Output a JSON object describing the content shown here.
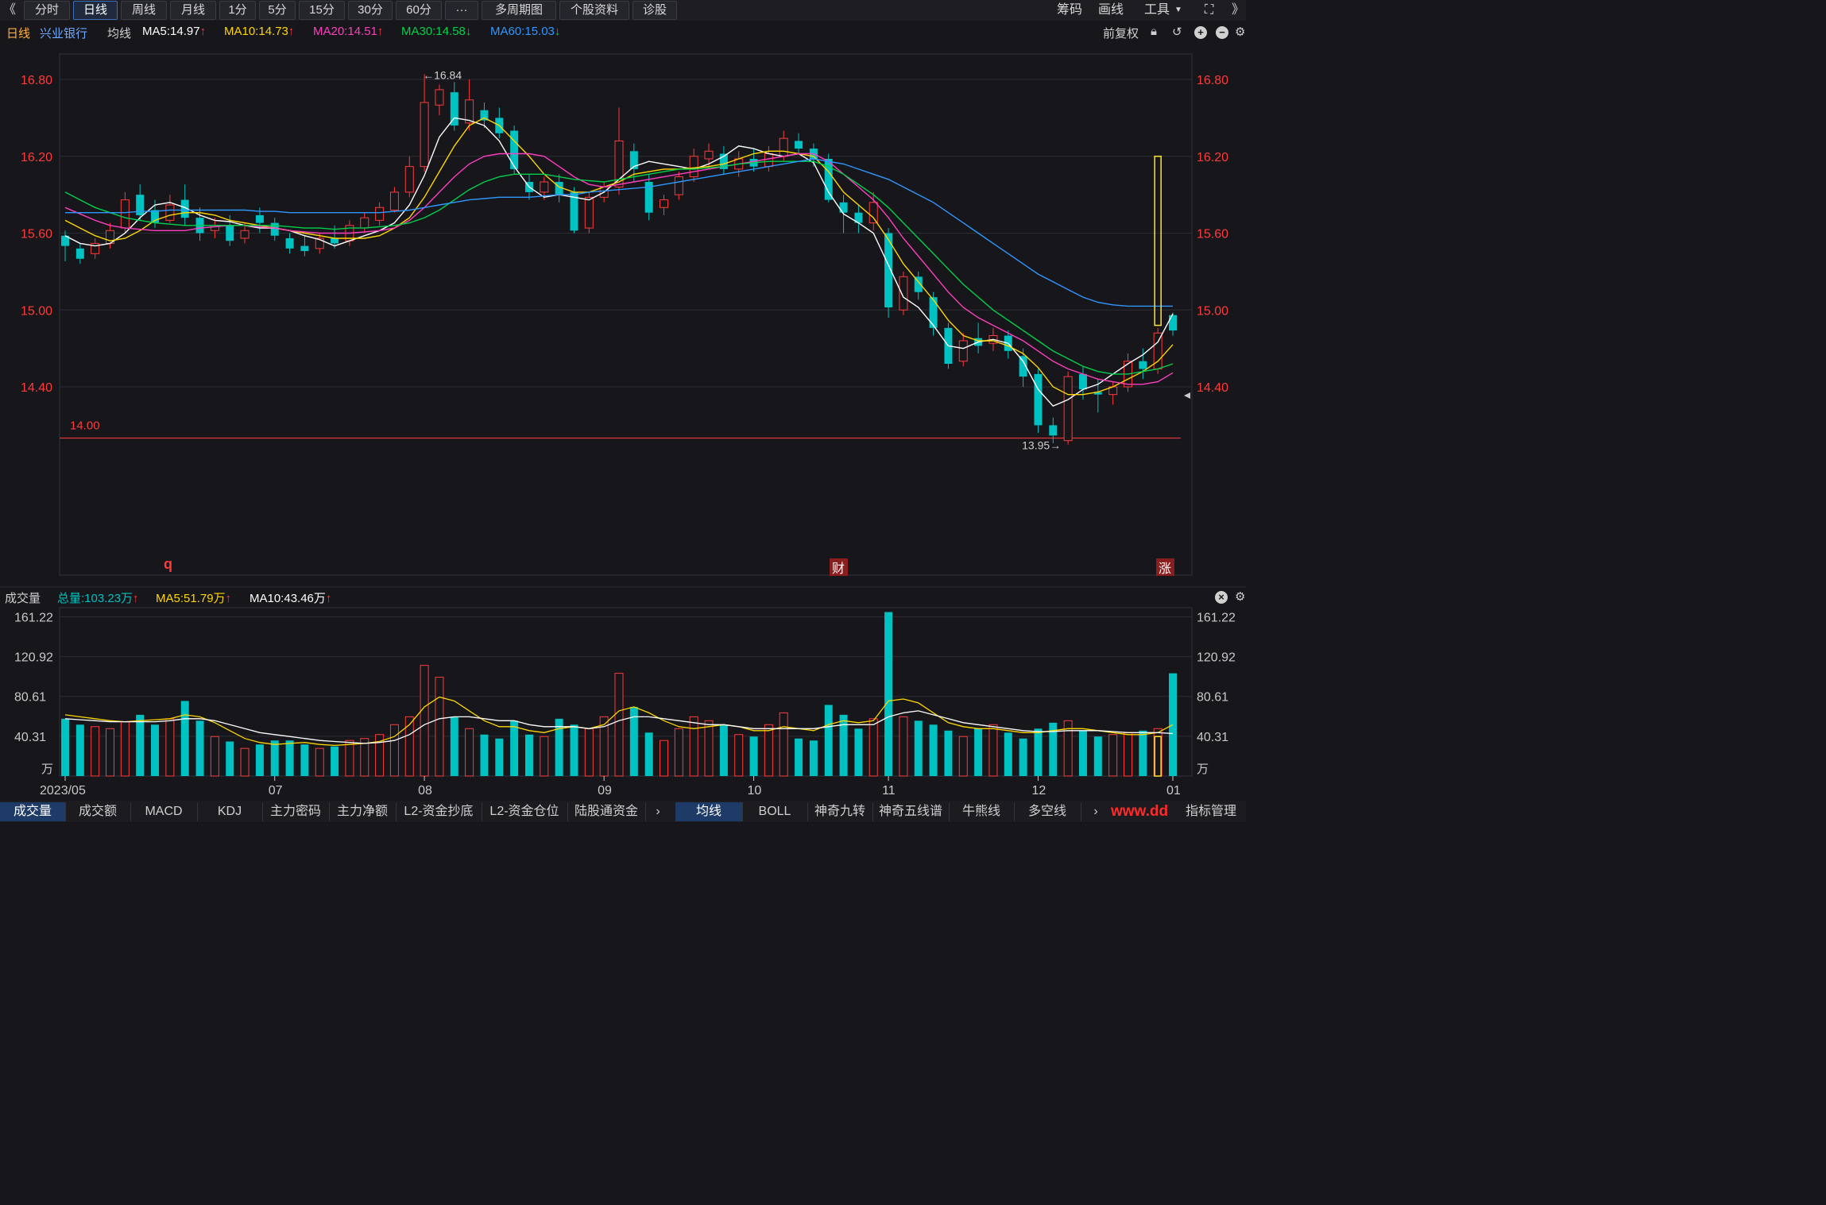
{
  "toolbar": {
    "back": "《",
    "tabs": [
      "分时",
      "日线",
      "周线",
      "月线",
      "1分",
      "5分",
      "15分",
      "30分",
      "60分",
      "···",
      "多周期图",
      "个股资料",
      "诊股"
    ],
    "active_tab": "日线",
    "right": [
      "筹码",
      "画线",
      "工具"
    ],
    "more": "》"
  },
  "info": {
    "period": "日线",
    "stock_name": "兴业银行",
    "ma_label": "均线",
    "ma5": "MA5:14.97",
    "ma10": "MA10:14.73",
    "ma20": "MA20:14.51",
    "ma30": "MA30:14.58",
    "ma60": "MA60:15.03",
    "adjust": "前复权"
  },
  "colors": {
    "up": "#ff3b3b",
    "down": "#00c2c2",
    "ma5": "#ffffff",
    "ma10": "#ffd700",
    "ma20": "#ff3fbf",
    "ma30": "#00d14b",
    "ma60": "#2f97ff",
    "axis_text": "#ff3b3b"
  },
  "chart_data": {
    "type": "candlestick",
    "price_ticks": [
      14.4,
      15.0,
      15.6,
      16.2,
      16.8
    ],
    "price_tick_labels": [
      "14.40",
      "15.00",
      "15.60",
      "16.20",
      "16.80"
    ],
    "ylim": [
      13.85,
      16.95
    ],
    "high_label": "←16.84",
    "low_label": "13.95→",
    "support_line": 14.0,
    "support_label": "14.00",
    "markers": [
      "q",
      "财",
      "涨"
    ],
    "x_labels": [
      "2023/05",
      "07",
      "08",
      "09",
      "10",
      "11",
      "12",
      "01"
    ],
    "ma_series": [
      {
        "name": "MA5",
        "values": [
          15.58,
          15.52,
          15.5,
          15.52,
          15.6,
          15.72,
          15.82,
          15.84,
          15.8,
          15.74,
          15.7,
          15.69,
          15.66,
          15.64,
          15.64,
          15.62,
          15.58,
          15.55,
          15.5,
          15.54,
          15.58,
          15.62,
          15.68,
          15.82,
          16.05,
          16.35,
          16.5,
          16.48,
          16.44,
          16.32,
          16.12,
          15.96,
          15.88,
          15.9,
          15.88,
          15.86,
          15.92,
          16.02,
          16.12,
          16.16,
          16.14,
          16.12,
          16.1,
          16.14,
          16.2,
          16.28,
          16.26,
          16.22,
          16.2,
          16.22,
          16.15,
          15.92,
          15.75,
          15.68,
          15.6,
          15.35,
          15.1,
          15.02,
          14.88,
          14.72,
          14.7,
          14.75,
          14.77,
          14.74,
          14.6,
          14.38,
          14.25,
          14.3,
          14.38,
          14.42,
          14.5,
          14.58,
          14.65,
          14.75,
          14.97
        ]
      },
      {
        "name": "MA10",
        "values": [
          15.7,
          15.64,
          15.58,
          15.54,
          15.56,
          15.62,
          15.7,
          15.74,
          15.76,
          15.76,
          15.74,
          15.7,
          15.68,
          15.66,
          15.64,
          15.62,
          15.6,
          15.58,
          15.56,
          15.56,
          15.56,
          15.58,
          15.64,
          15.72,
          15.88,
          16.08,
          16.28,
          16.44,
          16.5,
          16.44,
          16.32,
          16.2,
          16.06,
          15.96,
          15.92,
          15.92,
          15.96,
          16.0,
          16.06,
          16.08,
          16.1,
          16.1,
          16.11,
          16.12,
          16.14,
          16.18,
          16.22,
          16.24,
          16.24,
          16.22,
          16.2,
          16.08,
          15.92,
          15.82,
          15.72,
          15.55,
          15.36,
          15.22,
          15.08,
          14.92,
          14.8,
          14.76,
          14.76,
          14.72,
          14.66,
          14.55,
          14.4,
          14.34,
          14.34,
          14.36,
          14.4,
          14.46,
          14.52,
          14.6,
          14.73
        ]
      },
      {
        "name": "MA20",
        "values": [
          15.8,
          15.75,
          15.7,
          15.66,
          15.64,
          15.63,
          15.62,
          15.62,
          15.62,
          15.64,
          15.65,
          15.66,
          15.66,
          15.65,
          15.64,
          15.62,
          15.61,
          15.6,
          15.6,
          15.6,
          15.61,
          15.62,
          15.64,
          15.7,
          15.8,
          15.92,
          16.04,
          16.14,
          16.2,
          16.22,
          16.22,
          16.22,
          16.2,
          16.12,
          16.04,
          15.98,
          15.96,
          15.98,
          16.0,
          16.02,
          16.04,
          16.06,
          16.08,
          16.1,
          16.12,
          16.14,
          16.16,
          16.18,
          16.2,
          16.22,
          16.22,
          16.16,
          16.06,
          15.96,
          15.86,
          15.72,
          15.56,
          15.42,
          15.28,
          15.14,
          15.02,
          14.94,
          14.88,
          14.82,
          14.76,
          14.68,
          14.6,
          14.54,
          14.5,
          14.46,
          14.44,
          14.42,
          14.42,
          14.44,
          14.51
        ]
      },
      {
        "name": "MA30",
        "values": [
          15.92,
          15.86,
          15.8,
          15.76,
          15.72,
          15.7,
          15.68,
          15.67,
          15.66,
          15.66,
          15.66,
          15.66,
          15.66,
          15.66,
          15.66,
          15.65,
          15.64,
          15.64,
          15.63,
          15.64,
          15.64,
          15.65,
          15.66,
          15.68,
          15.72,
          15.78,
          15.86,
          15.94,
          16.0,
          16.04,
          16.06,
          16.06,
          16.06,
          16.04,
          16.02,
          16.01,
          16.0,
          16.02,
          16.04,
          16.06,
          16.08,
          16.1,
          16.1,
          16.11,
          16.12,
          16.14,
          16.15,
          16.16,
          16.16,
          16.16,
          16.16,
          16.12,
          16.06,
          15.98,
          15.9,
          15.8,
          15.68,
          15.56,
          15.44,
          15.32,
          15.2,
          15.1,
          15.0,
          14.92,
          14.84,
          14.76,
          14.68,
          14.62,
          14.56,
          14.52,
          14.5,
          14.5,
          14.52,
          14.54,
          14.58
        ]
      },
      {
        "name": "MA60",
        "values": [
          15.76,
          15.76,
          15.76,
          15.76,
          15.76,
          15.77,
          15.77,
          15.78,
          15.78,
          15.78,
          15.78,
          15.78,
          15.78,
          15.77,
          15.77,
          15.76,
          15.76,
          15.76,
          15.76,
          15.76,
          15.76,
          15.76,
          15.77,
          15.78,
          15.8,
          15.82,
          15.84,
          15.86,
          15.87,
          15.88,
          15.88,
          15.88,
          15.89,
          15.9,
          15.9,
          15.92,
          15.93,
          15.94,
          15.95,
          15.96,
          15.98,
          16.0,
          16.02,
          16.04,
          16.06,
          16.08,
          16.1,
          16.12,
          16.14,
          16.16,
          16.18,
          16.16,
          16.14,
          16.1,
          16.06,
          16.02,
          15.96,
          15.9,
          15.84,
          15.76,
          15.68,
          15.6,
          15.52,
          15.44,
          15.36,
          15.28,
          15.22,
          15.16,
          15.1,
          15.06,
          15.04,
          15.03,
          15.03,
          15.03,
          15.03
        ]
      }
    ],
    "candles": [
      {
        "o": 15.58,
        "h": 15.62,
        "c": 15.5,
        "l": 15.38
      },
      {
        "o": 15.48,
        "h": 15.52,
        "c": 15.4,
        "l": 15.36
      },
      {
        "o": 15.44,
        "h": 15.56,
        "c": 15.52,
        "l": 15.4
      },
      {
        "o": 15.52,
        "h": 15.68,
        "c": 15.62,
        "l": 15.48
      },
      {
        "o": 15.64,
        "h": 15.92,
        "c": 15.86,
        "l": 15.6
      },
      {
        "o": 15.9,
        "h": 15.98,
        "c": 15.74,
        "l": 15.7
      },
      {
        "o": 15.78,
        "h": 15.86,
        "c": 15.68,
        "l": 15.64
      },
      {
        "o": 15.7,
        "h": 15.9,
        "c": 15.82,
        "l": 15.68
      },
      {
        "o": 15.86,
        "h": 15.98,
        "c": 15.72,
        "l": 15.66
      },
      {
        "o": 15.72,
        "h": 15.8,
        "c": 15.6,
        "l": 15.54
      },
      {
        "o": 15.62,
        "h": 15.72,
        "c": 15.66,
        "l": 15.56
      },
      {
        "o": 15.66,
        "h": 15.74,
        "c": 15.54,
        "l": 15.5
      },
      {
        "o": 15.56,
        "h": 15.68,
        "c": 15.62,
        "l": 15.52
      },
      {
        "o": 15.74,
        "h": 15.8,
        "c": 15.68,
        "l": 15.6
      },
      {
        "o": 15.68,
        "h": 15.72,
        "c": 15.58,
        "l": 15.54
      },
      {
        "o": 15.56,
        "h": 15.6,
        "c": 15.48,
        "l": 15.44
      },
      {
        "o": 15.5,
        "h": 15.58,
        "c": 15.46,
        "l": 15.42
      },
      {
        "o": 15.48,
        "h": 15.6,
        "c": 15.56,
        "l": 15.44
      },
      {
        "o": 15.56,
        "h": 15.66,
        "c": 15.52,
        "l": 15.48
      },
      {
        "o": 15.54,
        "h": 15.7,
        "c": 15.66,
        "l": 15.5
      },
      {
        "o": 15.64,
        "h": 15.76,
        "c": 15.72,
        "l": 15.6
      },
      {
        "o": 15.7,
        "h": 15.84,
        "c": 15.8,
        "l": 15.66
      },
      {
        "o": 15.78,
        "h": 15.96,
        "c": 15.92,
        "l": 15.76
      },
      {
        "o": 15.92,
        "h": 16.2,
        "c": 16.12,
        "l": 15.88
      },
      {
        "o": 16.12,
        "h": 16.84,
        "c": 16.62,
        "l": 16.08
      },
      {
        "o": 16.6,
        "h": 16.76,
        "c": 16.72,
        "l": 16.52
      },
      {
        "o": 16.7,
        "h": 16.78,
        "c": 16.44,
        "l": 16.4
      },
      {
        "o": 16.46,
        "h": 16.8,
        "c": 16.64,
        "l": 16.4
      },
      {
        "o": 16.56,
        "h": 16.62,
        "c": 16.48,
        "l": 16.42
      },
      {
        "o": 16.5,
        "h": 16.58,
        "c": 16.38,
        "l": 16.34
      },
      {
        "o": 16.4,
        "h": 16.44,
        "c": 16.1,
        "l": 16.06
      },
      {
        "o": 16.0,
        "h": 16.06,
        "c": 15.92,
        "l": 15.86
      },
      {
        "o": 15.92,
        "h": 16.04,
        "c": 16.0,
        "l": 15.86
      },
      {
        "o": 16.0,
        "h": 16.06,
        "c": 15.9,
        "l": 15.84
      },
      {
        "o": 15.92,
        "h": 15.96,
        "c": 15.62,
        "l": 15.6
      },
      {
        "o": 15.64,
        "h": 15.92,
        "c": 15.88,
        "l": 15.6
      },
      {
        "o": 15.88,
        "h": 16.0,
        "c": 15.96,
        "l": 15.84
      },
      {
        "o": 15.96,
        "h": 16.58,
        "c": 16.32,
        "l": 15.9
      },
      {
        "o": 16.24,
        "h": 16.3,
        "c": 16.1,
        "l": 16.0
      },
      {
        "o": 16.0,
        "h": 16.06,
        "c": 15.76,
        "l": 15.7
      },
      {
        "o": 15.8,
        "h": 15.9,
        "c": 15.86,
        "l": 15.74
      },
      {
        "o": 15.9,
        "h": 16.08,
        "c": 16.04,
        "l": 15.86
      },
      {
        "o": 16.04,
        "h": 16.26,
        "c": 16.2,
        "l": 16.0
      },
      {
        "o": 16.18,
        "h": 16.3,
        "c": 16.24,
        "l": 16.1
      },
      {
        "o": 16.22,
        "h": 16.28,
        "c": 16.1,
        "l": 16.06
      },
      {
        "o": 16.1,
        "h": 16.24,
        "c": 16.18,
        "l": 16.04
      },
      {
        "o": 16.18,
        "h": 16.26,
        "c": 16.12,
        "l": 16.08
      },
      {
        "o": 16.12,
        "h": 16.28,
        "c": 16.22,
        "l": 16.08
      },
      {
        "o": 16.2,
        "h": 16.4,
        "c": 16.34,
        "l": 16.16
      },
      {
        "o": 16.32,
        "h": 16.38,
        "c": 16.26,
        "l": 16.22
      },
      {
        "o": 16.26,
        "h": 16.3,
        "c": 16.18,
        "l": 16.12
      },
      {
        "o": 16.18,
        "h": 16.22,
        "c": 15.86,
        "l": 15.84
      },
      {
        "o": 15.84,
        "h": 15.9,
        "c": 15.76,
        "l": 15.6
      },
      {
        "o": 15.76,
        "h": 15.82,
        "c": 15.68,
        "l": 15.6
      },
      {
        "o": 15.68,
        "h": 15.92,
        "c": 15.84,
        "l": 15.62
      },
      {
        "o": 15.6,
        "h": 15.64,
        "c": 15.02,
        "l": 14.94
      },
      {
        "o": 15.0,
        "h": 15.3,
        "c": 15.26,
        "l": 14.96
      },
      {
        "o": 15.26,
        "h": 15.3,
        "c": 15.14,
        "l": 15.08
      },
      {
        "o": 15.1,
        "h": 15.14,
        "c": 14.86,
        "l": 14.8
      },
      {
        "o": 14.86,
        "h": 14.9,
        "c": 14.58,
        "l": 14.54
      },
      {
        "o": 14.6,
        "h": 14.82,
        "c": 14.76,
        "l": 14.56
      },
      {
        "o": 14.78,
        "h": 14.9,
        "c": 14.72,
        "l": 14.66
      },
      {
        "o": 14.74,
        "h": 14.86,
        "c": 14.8,
        "l": 14.68
      },
      {
        "o": 14.8,
        "h": 14.84,
        "c": 14.68,
        "l": 14.62
      },
      {
        "o": 14.64,
        "h": 14.7,
        "c": 14.48,
        "l": 14.4
      },
      {
        "o": 14.5,
        "h": 14.54,
        "c": 14.1,
        "l": 14.04
      },
      {
        "o": 14.1,
        "h": 14.16,
        "c": 14.02,
        "l": 13.96
      },
      {
        "o": 13.98,
        "h": 14.52,
        "c": 14.48,
        "l": 13.95
      },
      {
        "o": 14.5,
        "h": 14.56,
        "c": 14.38,
        "l": 14.3
      },
      {
        "o": 14.36,
        "h": 14.46,
        "c": 14.34,
        "l": 14.2
      },
      {
        "o": 14.34,
        "h": 14.44,
        "c": 14.4,
        "l": 14.26
      },
      {
        "o": 14.4,
        "h": 14.66,
        "c": 14.6,
        "l": 14.36
      },
      {
        "o": 14.6,
        "h": 14.7,
        "c": 14.54,
        "l": 14.46
      },
      {
        "o": 14.54,
        "h": 14.86,
        "c": 14.82,
        "l": 14.5
      },
      {
        "o": 14.96,
        "h": 14.98,
        "c": 14.84,
        "l": 14.8
      }
    ],
    "vol_ticks": [
      40.31,
      80.61,
      120.92,
      161.22
    ],
    "vol_tick_labels": [
      "40.31",
      "80.61",
      "120.92",
      "161.22"
    ],
    "vol_unit": "万",
    "vol_max": 168,
    "volume": [
      58,
      52,
      50,
      48,
      55,
      62,
      52,
      58,
      76,
      56,
      40,
      35,
      28,
      32,
      36,
      36,
      32,
      28,
      30,
      36,
      38,
      42,
      52,
      60,
      112,
      100,
      60,
      48,
      42,
      38,
      56,
      42,
      40,
      58,
      52,
      48,
      60,
      104,
      70,
      44,
      36,
      48,
      60,
      56,
      52,
      42,
      40,
      52,
      64,
      38,
      36,
      72,
      62,
      48,
      58,
      166,
      60,
      56,
      52,
      46,
      40,
      48,
      52,
      44,
      38,
      48,
      54,
      56,
      46,
      40,
      42,
      44,
      46,
      48,
      104
    ],
    "vol_ma5": [
      62,
      60,
      58,
      56,
      55,
      56,
      57,
      58,
      62,
      60,
      54,
      46,
      38,
      34,
      32,
      33,
      34,
      32,
      31,
      32,
      33,
      35,
      40,
      52,
      70,
      80,
      76,
      66,
      56,
      50,
      50,
      46,
      44,
      48,
      50,
      48,
      52,
      66,
      70,
      64,
      56,
      50,
      48,
      50,
      52,
      50,
      46,
      46,
      50,
      48,
      46,
      52,
      56,
      54,
      56,
      76,
      78,
      74,
      64,
      54,
      50,
      48,
      48,
      46,
      44,
      44,
      46,
      48,
      48,
      46,
      44,
      42,
      42,
      44,
      52
    ],
    "vol_ma10": [
      58,
      57,
      56,
      55,
      55,
      55,
      55,
      56,
      58,
      58,
      56,
      52,
      48,
      44,
      42,
      40,
      38,
      36,
      35,
      34,
      33,
      34,
      36,
      42,
      52,
      58,
      60,
      60,
      58,
      56,
      56,
      52,
      50,
      50,
      50,
      48,
      50,
      56,
      60,
      60,
      58,
      56,
      54,
      52,
      52,
      50,
      48,
      48,
      48,
      48,
      48,
      50,
      52,
      52,
      52,
      60,
      64,
      66,
      62,
      58,
      54,
      52,
      50,
      48,
      46,
      45,
      45,
      46,
      46,
      46,
      45,
      44,
      44,
      44,
      43
    ]
  },
  "volume_panel": {
    "title": "成交量",
    "total": "总量:103.23万",
    "ma5": "MA5:51.79万",
    "ma10": "MA10:43.46万"
  },
  "bottom_tabs": {
    "left": [
      "成交量",
      "成交额",
      "MACD",
      "KDJ",
      "主力密码",
      "主力净额",
      "L2-资金抄底",
      "L2-资金仓位",
      "陆股通资金"
    ],
    "right": [
      "均线",
      "BOLL",
      "神奇九转",
      "神奇五线谱",
      "牛熊线",
      "多空线"
    ],
    "indicator": "指标管理",
    "watermark": "www.dd"
  }
}
